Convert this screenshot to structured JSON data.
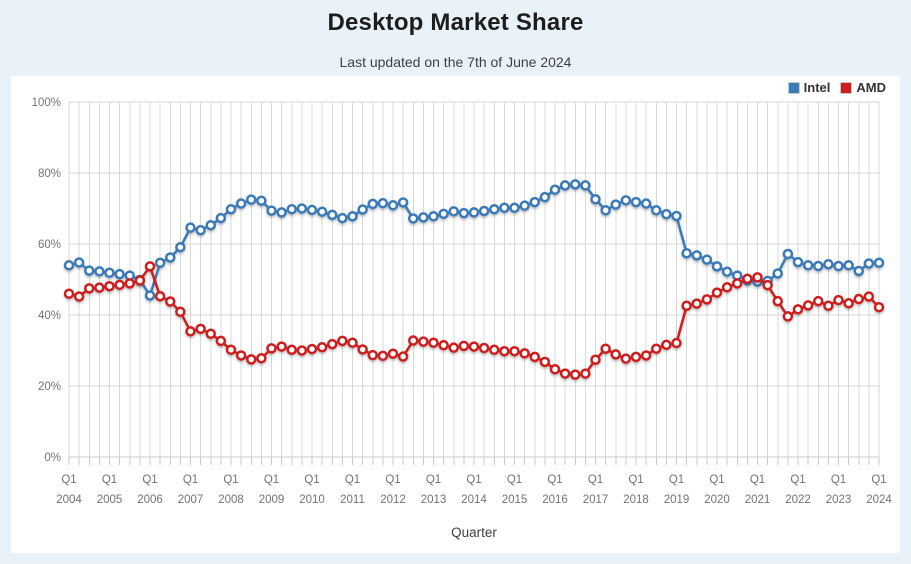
{
  "page": {
    "title": "Desktop Market Share",
    "subtitle": "Last updated on the 7th of June 2024",
    "background_color": "#e9f2f8"
  },
  "legend": {
    "position": "top-right",
    "items": [
      {
        "label": "Intel",
        "color": "#3b7ab8"
      },
      {
        "label": "AMD",
        "color": "#cf1d1d"
      }
    ]
  },
  "chart_data": {
    "type": "line",
    "title": "Desktop Market Share",
    "subtitle": "Last updated on the 7th of June 2024",
    "xlabel": "Quarter",
    "ylabel": "",
    "ylim": [
      0,
      100
    ],
    "grid": true,
    "x_interval": "quarter",
    "x_start": "Q1 2004",
    "x_end": "Q1 2024",
    "y_tick_labels": [
      "0%",
      "20%",
      "40%",
      "60%",
      "80%",
      "100%"
    ],
    "x_tick_quarter_label": "Q1",
    "x_tick_years": [
      "2004",
      "2005",
      "2006",
      "2007",
      "2008",
      "2009",
      "2010",
      "2011",
      "2012",
      "2013",
      "2014",
      "2015",
      "2016",
      "2017",
      "2018",
      "2019",
      "2020",
      "2021",
      "2022",
      "2023",
      "2024"
    ],
    "marker_style": {
      "radius": 4,
      "fill": "#ffffff",
      "stroke_width": 2.5
    },
    "line_width": 2.5,
    "grid_color": "#d8d8d8",
    "axis_color": "#c9c9c9",
    "series": [
      {
        "name": "Intel",
        "color": "#3b7ab8",
        "values": [
          54.0,
          54.8,
          52.5,
          52.3,
          51.9,
          51.5,
          51.1,
          49.9,
          45.5,
          54.7,
          56.2,
          59.1,
          64.6,
          63.9,
          65.3,
          67.3,
          69.8,
          71.4,
          72.5,
          72.2,
          69.4,
          68.9,
          69.8,
          70.0,
          69.6,
          69.1,
          68.2,
          67.3,
          67.8,
          69.7,
          71.3,
          71.5,
          70.9,
          71.7,
          67.2,
          67.5,
          67.8,
          68.5,
          69.2,
          68.7,
          68.9,
          69.3,
          69.8,
          70.2,
          70.2,
          70.8,
          71.8,
          73.2,
          75.3,
          76.5,
          76.8,
          76.5,
          72.6,
          69.5,
          71.1,
          72.3,
          71.8,
          71.4,
          69.5,
          68.4,
          67.9,
          57.4,
          56.8,
          55.6,
          53.7,
          52.2,
          51.1,
          49.8,
          49.4,
          49.6,
          51.7,
          57.2,
          54.9,
          54.0,
          53.8,
          54.3,
          53.8,
          54.0,
          52.4,
          54.5,
          54.7
        ]
      },
      {
        "name": "AMD",
        "color": "#cf1d1d",
        "values": [
          46.0,
          45.2,
          47.5,
          47.7,
          48.1,
          48.5,
          48.9,
          49.7,
          53.7,
          45.3,
          43.8,
          40.9,
          35.4,
          36.1,
          34.7,
          32.7,
          30.2,
          28.6,
          27.5,
          27.8,
          30.6,
          31.1,
          30.2,
          30.0,
          30.4,
          30.9,
          31.8,
          32.7,
          32.2,
          30.3,
          28.7,
          28.5,
          29.1,
          28.3,
          32.8,
          32.5,
          32.2,
          31.5,
          30.8,
          31.3,
          31.1,
          30.7,
          30.2,
          29.8,
          29.8,
          29.2,
          28.2,
          26.8,
          24.7,
          23.5,
          23.2,
          23.5,
          27.4,
          30.5,
          28.9,
          27.7,
          28.2,
          28.6,
          30.5,
          31.6,
          32.1,
          42.6,
          43.2,
          44.4,
          46.3,
          47.8,
          48.9,
          50.2,
          50.6,
          48.4,
          43.9,
          39.6,
          41.6,
          42.7,
          43.9,
          42.6,
          44.2,
          43.3,
          44.5,
          45.2,
          42.2
        ]
      }
    ]
  }
}
